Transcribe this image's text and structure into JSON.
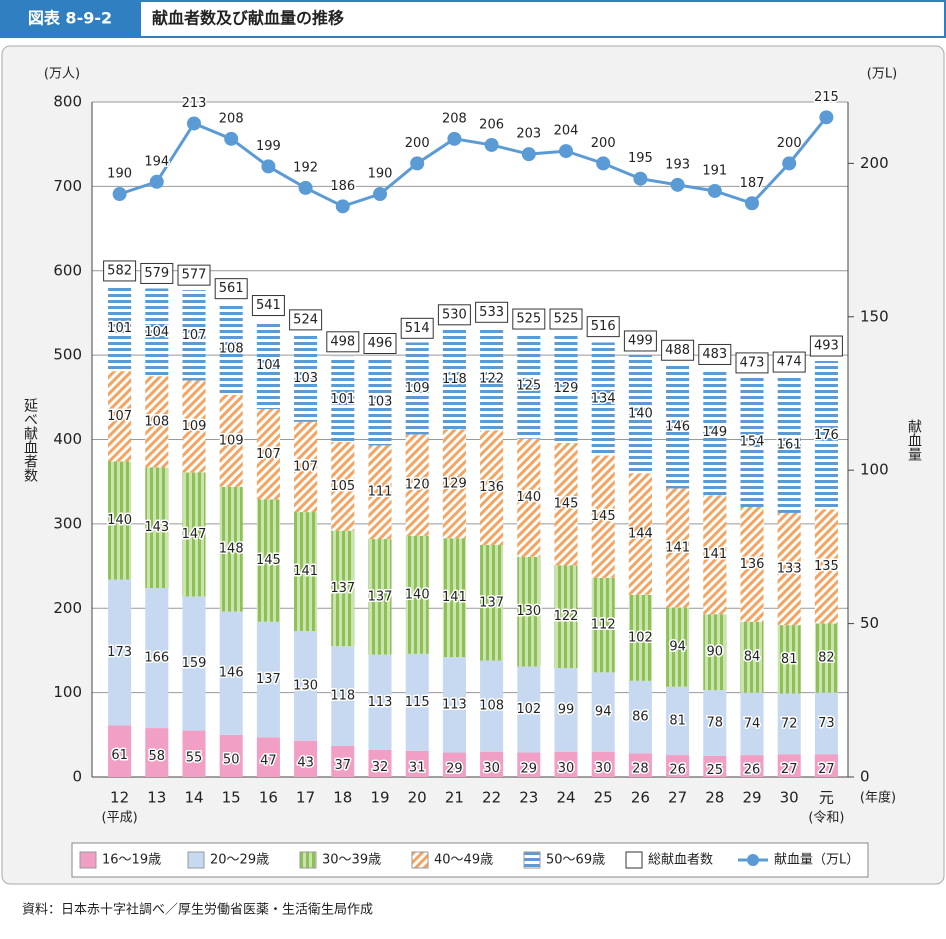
{
  "chart_data": {
    "type": "stacked_bar_line",
    "figure_label": "図表 8-9-2",
    "title": "献血者数及び献血量の推移",
    "source": "資料：日本赤十字社調べ／厚生労働省医薬・生活衛生局作成",
    "y_unit": "(万人)",
    "y2_unit": "(万L)",
    "ylabel": "延べ献血者数",
    "y2label": "献血量",
    "x_unit": "(年度)",
    "categories": [
      "12",
      "13",
      "14",
      "15",
      "16",
      "17",
      "18",
      "19",
      "20",
      "21",
      "22",
      "23",
      "24",
      "25",
      "26",
      "27",
      "28",
      "29",
      "30",
      "元"
    ],
    "category_notes": [
      "(平成)",
      null,
      null,
      null,
      null,
      null,
      null,
      null,
      null,
      null,
      null,
      null,
      null,
      null,
      null,
      null,
      null,
      null,
      null,
      "(令和)"
    ],
    "ylim": [
      0,
      800
    ],
    "yticks": [
      0,
      100,
      200,
      300,
      400,
      500,
      600,
      700,
      800
    ],
    "y2lim": [
      0,
      220
    ],
    "y2ticks": [
      0,
      50,
      100,
      150,
      200
    ],
    "grid": true,
    "series": [
      {
        "name": "16～19歳",
        "color": "#f29fc5",
        "pattern": "solid",
        "values": [
          61,
          58,
          55,
          50,
          47,
          43,
          37,
          32,
          31,
          29,
          30,
          29,
          30,
          30,
          28,
          26,
          25,
          26,
          27,
          27
        ]
      },
      {
        "name": "20～29歳",
        "color": "#c6d9f1",
        "pattern": "solid",
        "values": [
          173,
          166,
          159,
          146,
          137,
          130,
          118,
          113,
          115,
          113,
          108,
          102,
          99,
          94,
          86,
          81,
          78,
          74,
          72,
          73
        ]
      },
      {
        "name": "30～39歳",
        "color": "#8dc153",
        "pattern": "vertical",
        "values": [
          140,
          143,
          147,
          148,
          145,
          141,
          137,
          137,
          140,
          141,
          137,
          130,
          122,
          112,
          102,
          94,
          90,
          84,
          81,
          82
        ]
      },
      {
        "name": "40～49歳",
        "color": "#f4a460",
        "pattern": "diagonal",
        "values": [
          107,
          108,
          109,
          109,
          107,
          107,
          105,
          111,
          120,
          129,
          136,
          140,
          145,
          145,
          144,
          141,
          141,
          136,
          133,
          135
        ]
      },
      {
        "name": "50～69歳",
        "color": "#5b9bd5",
        "pattern": "horizontal",
        "values": [
          101,
          104,
          107,
          108,
          104,
          103,
          101,
          103,
          109,
          118,
          122,
          125,
          129,
          134,
          140,
          146,
          149,
          154,
          161,
          176
        ]
      }
    ],
    "totals": {
      "name": "総献血者数",
      "values": [
        582,
        579,
        577,
        561,
        541,
        524,
        498,
        496,
        514,
        530,
        533,
        525,
        525,
        516,
        499,
        488,
        483,
        473,
        474,
        493
      ]
    },
    "line": {
      "name": "献血量（万L）",
      "axis": "y2",
      "color": "#5b9bd5",
      "values": [
        190,
        194,
        213,
        208,
        199,
        192,
        186,
        190,
        200,
        208,
        206,
        203,
        204,
        200,
        195,
        193,
        191,
        187,
        200,
        215
      ]
    }
  }
}
